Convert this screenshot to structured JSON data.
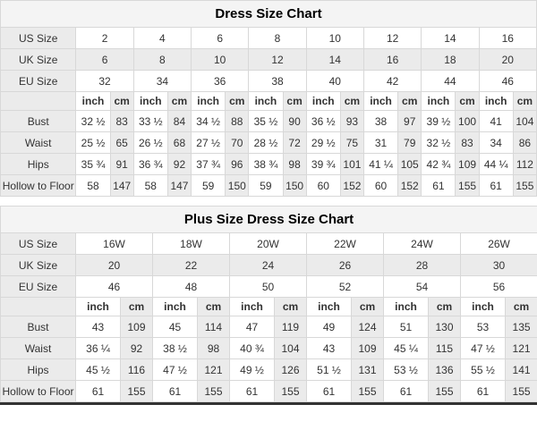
{
  "colors": {
    "shaded_cell": "#ebebeb",
    "title_row_bg": "#f4f4f4",
    "border": "#d8d8d8",
    "bottom_bar": "#333333"
  },
  "tables": [
    {
      "title": "Dress Size Chart",
      "size_rows": [
        {
          "label": "US Size",
          "values": [
            "2",
            "4",
            "6",
            "8",
            "10",
            "12",
            "14",
            "16"
          ]
        },
        {
          "label": "UK Size",
          "values": [
            "6",
            "8",
            "10",
            "12",
            "14",
            "16",
            "18",
            "20"
          ]
        },
        {
          "label": "EU Size",
          "values": [
            "32",
            "34",
            "36",
            "38",
            "40",
            "42",
            "44",
            "46"
          ]
        }
      ],
      "unit_row": {
        "label": "",
        "units": [
          "inch",
          "cm"
        ]
      },
      "measure_rows": [
        {
          "label": "Bust",
          "pairs": [
            [
              "32 ½",
              "83"
            ],
            [
              "33 ½",
              "84"
            ],
            [
              "34 ½",
              "88"
            ],
            [
              "35 ½",
              "90"
            ],
            [
              "36 ½",
              "93"
            ],
            [
              "38",
              "97"
            ],
            [
              "39 ½",
              "100"
            ],
            [
              "41",
              "104"
            ]
          ]
        },
        {
          "label": "Waist",
          "pairs": [
            [
              "25 ½",
              "65"
            ],
            [
              "26 ½",
              "68"
            ],
            [
              "27 ½",
              "70"
            ],
            [
              "28 ½",
              "72"
            ],
            [
              "29 ½",
              "75"
            ],
            [
              "31",
              "79"
            ],
            [
              "32 ½",
              "83"
            ],
            [
              "34",
              "86"
            ]
          ]
        },
        {
          "label": "Hips",
          "pairs": [
            [
              "35 ¾",
              "91"
            ],
            [
              "36 ¾",
              "92"
            ],
            [
              "37 ¾",
              "96"
            ],
            [
              "38 ¾",
              "98"
            ],
            [
              "39 ¾",
              "101"
            ],
            [
              "41 ¼",
              "105"
            ],
            [
              "42 ¾",
              "109"
            ],
            [
              "44 ¼",
              "112"
            ]
          ]
        },
        {
          "label": "Hollow to Floor",
          "pairs": [
            [
              "58",
              "147"
            ],
            [
              "58",
              "147"
            ],
            [
              "59",
              "150"
            ],
            [
              "59",
              "150"
            ],
            [
              "60",
              "152"
            ],
            [
              "60",
              "152"
            ],
            [
              "61",
              "155"
            ],
            [
              "61",
              "155"
            ]
          ]
        }
      ]
    },
    {
      "title": "Plus Size Dress Size Chart",
      "size_rows": [
        {
          "label": "US Size",
          "values": [
            "16W",
            "18W",
            "20W",
            "22W",
            "24W",
            "26W"
          ]
        },
        {
          "label": "UK Size",
          "values": [
            "20",
            "22",
            "24",
            "26",
            "28",
            "30"
          ]
        },
        {
          "label": "EU Size",
          "values": [
            "46",
            "48",
            "50",
            "52",
            "54",
            "56"
          ]
        }
      ],
      "unit_row": {
        "label": "",
        "units": [
          "inch",
          "cm"
        ]
      },
      "measure_rows": [
        {
          "label": "Bust",
          "pairs": [
            [
              "43",
              "109"
            ],
            [
              "45",
              "114"
            ],
            [
              "47",
              "119"
            ],
            [
              "49",
              "124"
            ],
            [
              "51",
              "130"
            ],
            [
              "53",
              "135"
            ]
          ]
        },
        {
          "label": "Waist",
          "pairs": [
            [
              "36 ¼",
              "92"
            ],
            [
              "38 ½",
              "98"
            ],
            [
              "40 ¾",
              "104"
            ],
            [
              "43",
              "109"
            ],
            [
              "45 ¼",
              "115"
            ],
            [
              "47 ½",
              "121"
            ]
          ]
        },
        {
          "label": "Hips",
          "pairs": [
            [
              "45 ½",
              "116"
            ],
            [
              "47 ½",
              "121"
            ],
            [
              "49 ½",
              "126"
            ],
            [
              "51 ½",
              "131"
            ],
            [
              "53 ½",
              "136"
            ],
            [
              "55 ½",
              "141"
            ]
          ]
        },
        {
          "label": "Hollow to Floor",
          "pairs": [
            [
              "61",
              "155"
            ],
            [
              "61",
              "155"
            ],
            [
              "61",
              "155"
            ],
            [
              "61",
              "155"
            ],
            [
              "61",
              "155"
            ],
            [
              "61",
              "155"
            ]
          ]
        }
      ]
    }
  ]
}
